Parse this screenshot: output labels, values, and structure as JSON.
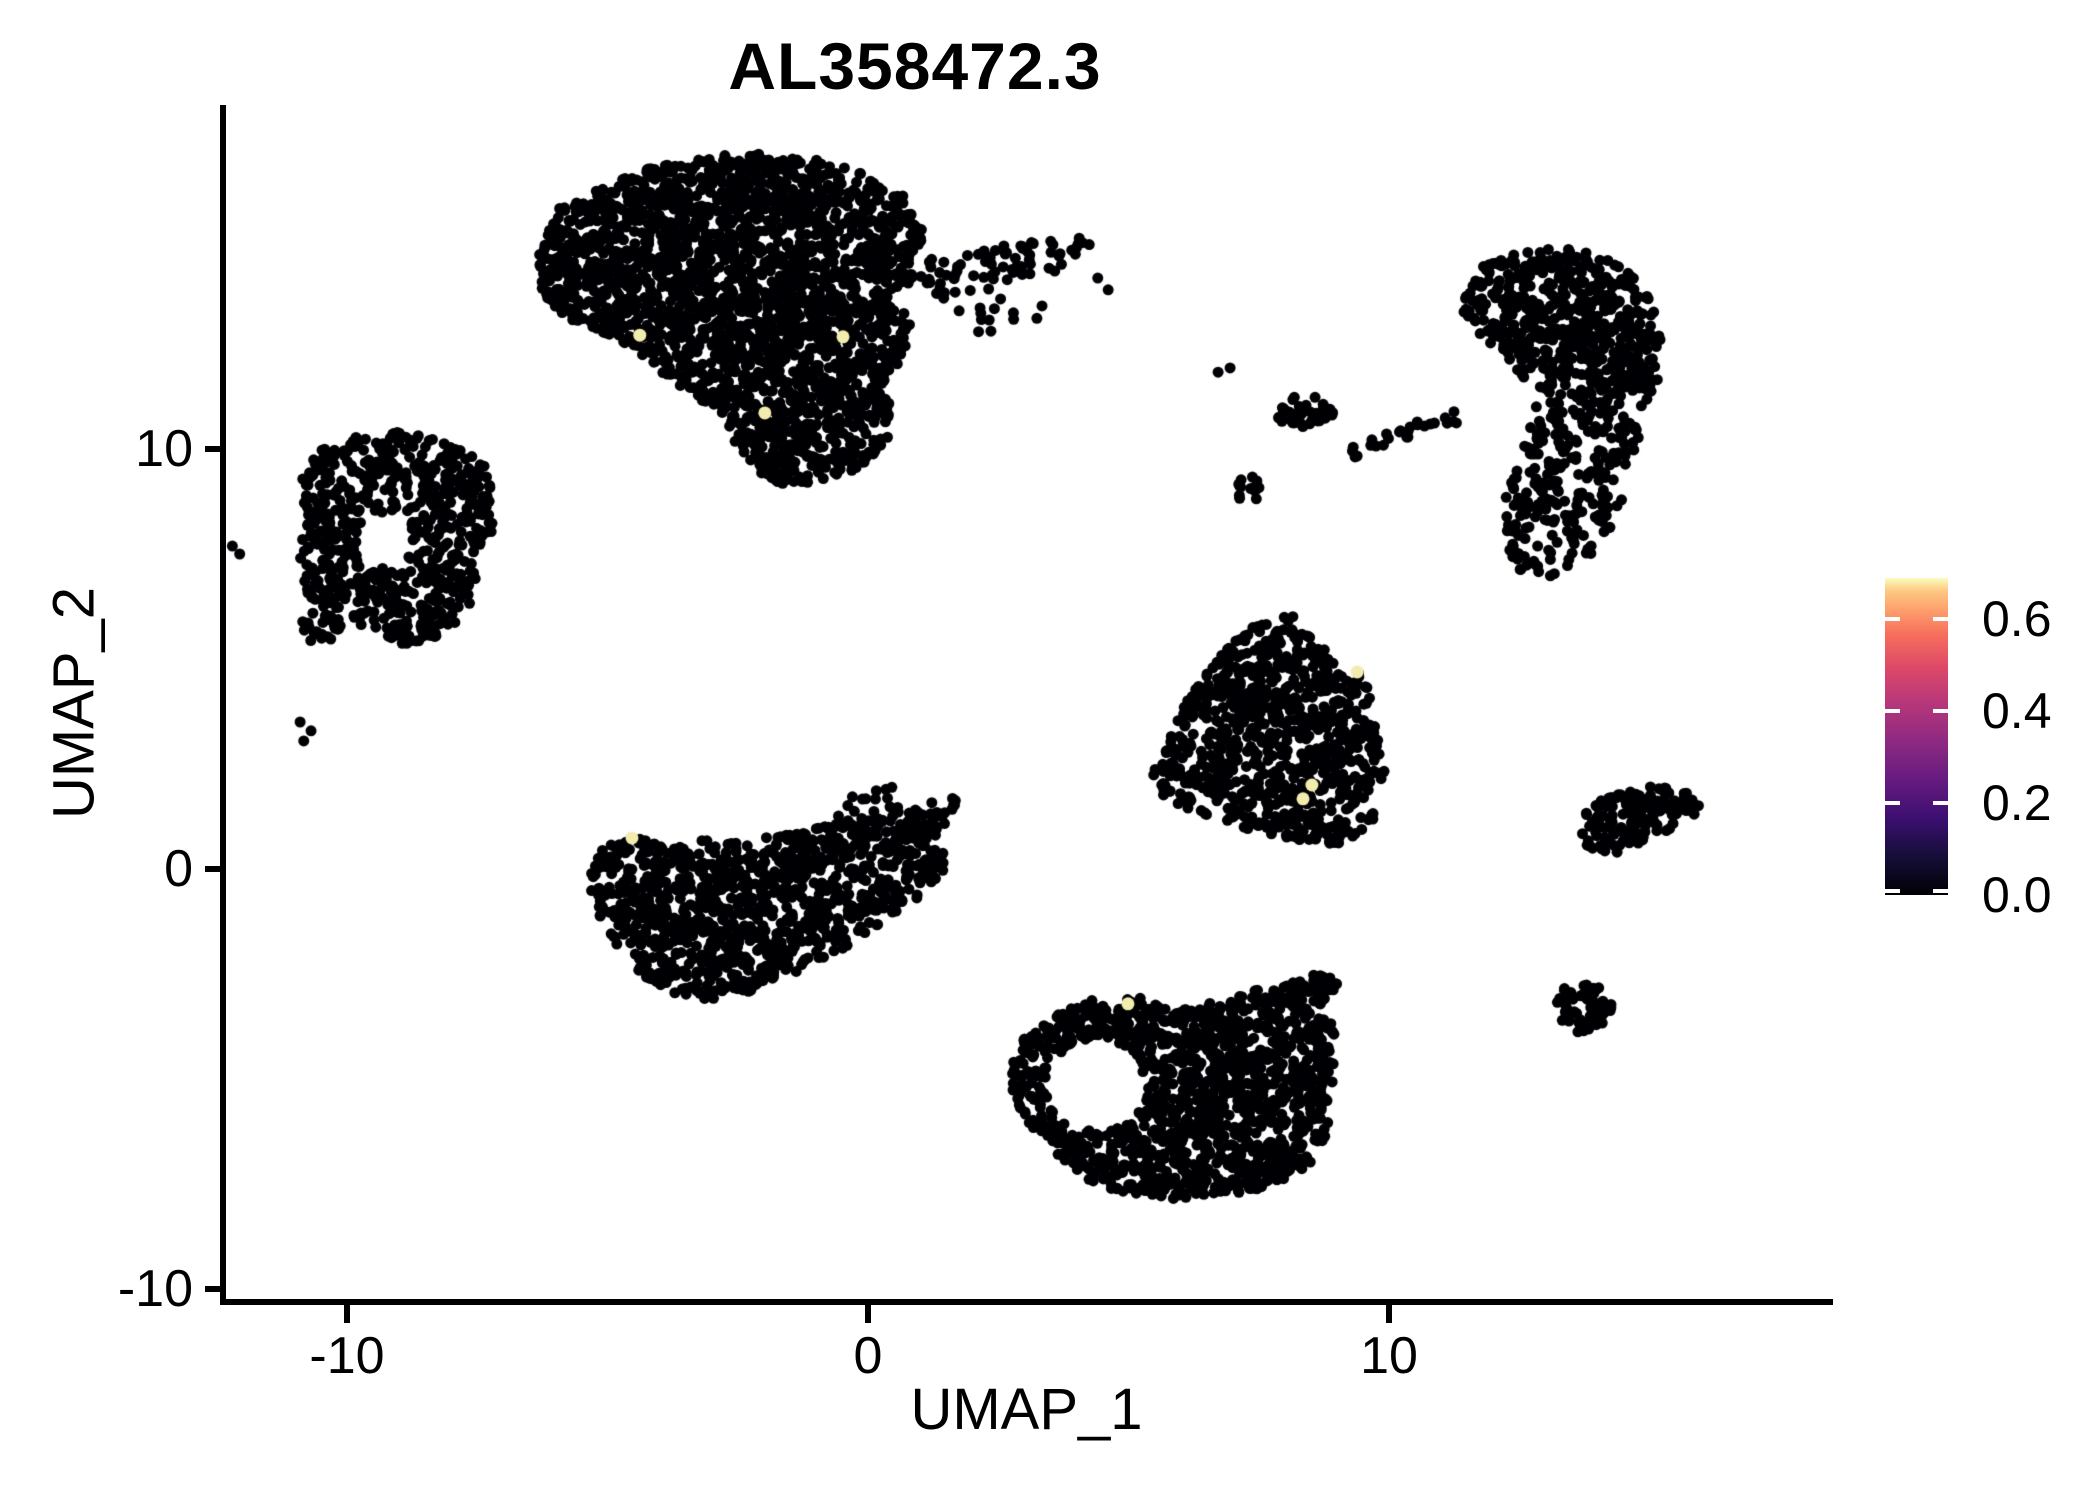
{
  "title": "AL358472.3",
  "axes": {
    "x": {
      "label": "UMAP_1",
      "tick_values": [
        -10,
        0,
        10
      ],
      "tick_labels": [
        "-10",
        "0",
        "10"
      ],
      "range": [
        -12.4,
        18.5
      ]
    },
    "y": {
      "label": "UMAP_2",
      "tick_values": [
        -10,
        0,
        10
      ],
      "tick_labels": [
        "-10",
        "0",
        "10"
      ],
      "range": [
        -10.3,
        18.2
      ]
    }
  },
  "legend": {
    "tick_values": [
      0.0,
      0.2,
      0.4,
      0.6
    ],
    "tick_labels": [
      "0.0",
      "0.2",
      "0.4",
      "0.6"
    ],
    "value_max": 0.688,
    "colormap": "magma",
    "gradient_stops": [
      {
        "t": 0.0,
        "color": "#000004"
      },
      {
        "t": 0.12,
        "color": "#150e38"
      },
      {
        "t": 0.24,
        "color": "#3b0f70"
      },
      {
        "t": 0.36,
        "color": "#651a80"
      },
      {
        "t": 0.48,
        "color": "#8c2981"
      },
      {
        "t": 0.6,
        "color": "#b5367a"
      },
      {
        "t": 0.72,
        "color": "#de4968"
      },
      {
        "t": 0.82,
        "color": "#f66e5c"
      },
      {
        "t": 0.9,
        "color": "#fe9f6d"
      },
      {
        "t": 0.96,
        "color": "#fdc982"
      },
      {
        "t": 1.0,
        "color": "#fbfdbf"
      }
    ]
  },
  "chart_data": {
    "type": "scatter",
    "title": "AL358472.3",
    "xlabel": "UMAP_1",
    "ylabel": "UMAP_2",
    "xlim": [
      -12.4,
      18.5
    ],
    "ylim": [
      -10.3,
      18.2
    ],
    "grid": false,
    "legend_position": "right",
    "point_color_zero": "#000004",
    "highlight_color": "#f2edae",
    "point_radius_px": 5.5,
    "clusters": [
      {
        "name": "top-center-large",
        "n": 2400,
        "polygon": [
          [
            -6.24,
            13.6
          ],
          [
            -6.33,
            14.6
          ],
          [
            -5.95,
            15.74
          ],
          [
            -4.95,
            16.4
          ],
          [
            -3.8,
            16.83
          ],
          [
            -2.5,
            17.07
          ],
          [
            -1.21,
            16.95
          ],
          [
            -0.06,
            16.57
          ],
          [
            0.75,
            15.98
          ],
          [
            1.07,
            15.12
          ],
          [
            0.92,
            14.17
          ],
          [
            0.52,
            13.55
          ],
          [
            0.81,
            13.02
          ],
          [
            0.69,
            12.17
          ],
          [
            0.23,
            11.5
          ],
          [
            0.48,
            10.93
          ],
          [
            0.35,
            10.12
          ],
          [
            -0.19,
            9.55
          ],
          [
            -0.92,
            9.21
          ],
          [
            -1.65,
            9.17
          ],
          [
            -2.26,
            9.55
          ],
          [
            -2.61,
            10.12
          ],
          [
            -2.73,
            10.74
          ],
          [
            -3.22,
            11.17
          ],
          [
            -3.84,
            11.71
          ],
          [
            -4.41,
            12.31
          ],
          [
            -5.05,
            12.76
          ],
          [
            -5.72,
            13.07
          ]
        ]
      },
      {
        "name": "top-center-arm",
        "n": 75,
        "polygon": [
          [
            1.0,
            14.45
          ],
          [
            1.77,
            14.69
          ],
          [
            2.53,
            14.83
          ],
          [
            3.3,
            14.98
          ],
          [
            3.97,
            15.17
          ],
          [
            4.3,
            14.88
          ],
          [
            4.07,
            14.45
          ],
          [
            3.45,
            14.17
          ],
          [
            2.73,
            13.93
          ],
          [
            1.96,
            13.64
          ],
          [
            1.29,
            13.55
          ],
          [
            0.9,
            13.88
          ]
        ]
      },
      {
        "name": "left-donut",
        "n": 680,
        "polygon": [
          [
            -10.79,
            8.31
          ],
          [
            -10.86,
            9.26
          ],
          [
            -10.56,
            9.93
          ],
          [
            -10.04,
            10.33
          ],
          [
            -9.37,
            10.21
          ],
          [
            -8.98,
            10.45
          ],
          [
            -8.41,
            10.29
          ],
          [
            -7.79,
            10.02
          ],
          [
            -7.26,
            9.5
          ],
          [
            -7.1,
            8.79
          ],
          [
            -7.22,
            8.02
          ],
          [
            -7.64,
            7.4
          ],
          [
            -7.49,
            6.76
          ],
          [
            -7.68,
            6.05
          ],
          [
            -8.21,
            5.5
          ],
          [
            -8.89,
            5.33
          ],
          [
            -9.52,
            5.55
          ],
          [
            -9.94,
            6.05
          ],
          [
            -10.29,
            5.45
          ],
          [
            -10.71,
            5.26
          ],
          [
            -10.94,
            5.93
          ],
          [
            -10.86,
            6.88
          ],
          [
            -10.98,
            7.6
          ]
        ],
        "holes": [
          {
            "cx": -9.31,
            "cy": 7.83,
            "rx": 0.52,
            "ry": 0.64
          }
        ]
      },
      {
        "name": "center-left-bottom",
        "n": 1100,
        "polygon": [
          [
            -5.37,
            -0.21
          ],
          [
            -5.11,
            0.5
          ],
          [
            -4.49,
            0.74
          ],
          [
            -3.84,
            0.55
          ],
          [
            -3.22,
            0.69
          ],
          [
            -2.46,
            0.64
          ],
          [
            -1.69,
            0.83
          ],
          [
            -0.92,
            1.02
          ],
          [
            -0.15,
            1.21
          ],
          [
            0.61,
            1.4
          ],
          [
            1.38,
            1.64
          ],
          [
            1.73,
            1.79
          ],
          [
            1.57,
            1.12
          ],
          [
            1.15,
            0.55
          ],
          [
            1.57,
            0.31
          ],
          [
            1.38,
            -0.26
          ],
          [
            0.84,
            -0.79
          ],
          [
            0.19,
            -1.36
          ],
          [
            -0.54,
            -1.93
          ],
          [
            -1.34,
            -2.45
          ],
          [
            -2.17,
            -2.88
          ],
          [
            -2.99,
            -3.12
          ],
          [
            -3.8,
            -2.93
          ],
          [
            -4.41,
            -2.45
          ],
          [
            -4.91,
            -1.79
          ],
          [
            -5.22,
            -1.02
          ]
        ]
      },
      {
        "name": "middle-triangle",
        "n": 850,
        "polygon": [
          [
            8.06,
            6.12
          ],
          [
            8.48,
            5.74
          ],
          [
            8.87,
            5.1
          ],
          [
            9.25,
            4.5
          ],
          [
            9.48,
            4.88
          ],
          [
            9.73,
            4.5
          ],
          [
            9.6,
            3.79
          ],
          [
            9.83,
            3.07
          ],
          [
            9.92,
            2.24
          ],
          [
            9.67,
            1.64
          ],
          [
            9.83,
            1.17
          ],
          [
            9.44,
            0.74
          ],
          [
            8.87,
            0.57
          ],
          [
            8.2,
            0.69
          ],
          [
            7.52,
            0.88
          ],
          [
            6.85,
            1.12
          ],
          [
            6.18,
            1.4
          ],
          [
            5.6,
            1.74
          ],
          [
            5.37,
            2.17
          ],
          [
            5.51,
            2.71
          ],
          [
            5.8,
            3.31
          ],
          [
            6.08,
            3.9
          ],
          [
            6.37,
            4.5
          ],
          [
            6.76,
            5.1
          ],
          [
            7.24,
            5.64
          ],
          [
            7.62,
            5.98
          ]
        ]
      },
      {
        "name": "bottom-center",
        "n": 1400,
        "polygon": [
          [
            2.69,
            -4.6
          ],
          [
            3.11,
            -3.83
          ],
          [
            3.69,
            -3.36
          ],
          [
            4.26,
            -3.12
          ],
          [
            4.8,
            -3.31
          ],
          [
            4.99,
            -3.02
          ],
          [
            5.41,
            -3.12
          ],
          [
            5.83,
            -3.4
          ],
          [
            6.37,
            -3.26
          ],
          [
            6.95,
            -3.02
          ],
          [
            7.56,
            -2.83
          ],
          [
            8.2,
            -2.64
          ],
          [
            8.68,
            -2.45
          ],
          [
            9.02,
            -2.64
          ],
          [
            8.87,
            -3.24
          ],
          [
            9.06,
            -3.6
          ],
          [
            8.91,
            -4.26
          ],
          [
            9.02,
            -4.9
          ],
          [
            8.79,
            -5.62
          ],
          [
            8.87,
            -6.33
          ],
          [
            8.52,
            -6.98
          ],
          [
            8.01,
            -7.4
          ],
          [
            7.33,
            -7.69
          ],
          [
            6.6,
            -7.83
          ],
          [
            5.89,
            -7.93
          ],
          [
            5.22,
            -7.83
          ],
          [
            4.55,
            -7.6
          ],
          [
            3.97,
            -7.21
          ],
          [
            3.49,
            -6.69
          ],
          [
            3.07,
            -6.07
          ],
          [
            2.8,
            -5.38
          ]
        ],
        "holes": [
          {
            "cx": 4.36,
            "cy": -5.14,
            "rx": 0.96,
            "ry": 1.07
          }
        ]
      },
      {
        "name": "right-crescent-top",
        "n": 560,
        "polygon": [
          [
            12.09,
            14.55
          ],
          [
            12.9,
            14.81
          ],
          [
            13.7,
            14.74
          ],
          [
            14.4,
            14.4
          ],
          [
            14.86,
            13.88
          ],
          [
            15.12,
            13.21
          ],
          [
            15.24,
            12.45
          ],
          [
            15.16,
            11.6
          ],
          [
            14.91,
            10.88
          ],
          [
            14.63,
            11.17
          ],
          [
            14.05,
            11.4
          ],
          [
            13.38,
            11.52
          ],
          [
            12.8,
            11.4
          ],
          [
            12.42,
            11.83
          ],
          [
            12.09,
            12.36
          ],
          [
            11.75,
            12.74
          ],
          [
            11.4,
            13.19
          ],
          [
            11.44,
            13.83
          ],
          [
            11.75,
            14.31
          ]
        ]
      },
      {
        "name": "right-crescent-bottom",
        "n": 270,
        "polygon": [
          [
            14.91,
            10.88
          ],
          [
            14.74,
            9.98
          ],
          [
            14.55,
            9.07
          ],
          [
            14.32,
            8.26
          ],
          [
            13.97,
            7.6
          ],
          [
            13.51,
            7.12
          ],
          [
            12.99,
            6.93
          ],
          [
            12.51,
            7.12
          ],
          [
            12.21,
            7.64
          ],
          [
            12.13,
            8.31
          ],
          [
            12.28,
            9.02
          ],
          [
            12.51,
            9.69
          ],
          [
            12.67,
            10.36
          ],
          [
            12.74,
            10.98
          ],
          [
            12.8,
            11.36
          ],
          [
            13.38,
            11.5
          ],
          [
            14.05,
            11.36
          ],
          [
            14.63,
            11.12
          ]
        ]
      },
      {
        "name": "right-arrow",
        "n": 140,
        "polygon": [
          [
            13.95,
            1.64
          ],
          [
            14.53,
            1.88
          ],
          [
            15.11,
            1.98
          ],
          [
            15.68,
            1.83
          ],
          [
            16.01,
            1.55
          ],
          [
            15.82,
            1.17
          ],
          [
            15.35,
            0.93
          ],
          [
            14.91,
            0.64
          ],
          [
            14.47,
            0.4
          ],
          [
            14.05,
            0.31
          ],
          [
            13.76,
            0.55
          ],
          [
            13.67,
            0.98
          ],
          [
            13.76,
            1.36
          ]
        ]
      },
      {
        "name": "right-small-blob",
        "n": 65,
        "polygon": [
          [
            13.21,
            -3.17
          ],
          [
            13.36,
            -2.83
          ],
          [
            13.7,
            -2.69
          ],
          [
            14.09,
            -2.79
          ],
          [
            14.28,
            -3.12
          ],
          [
            14.24,
            -3.55
          ],
          [
            13.97,
            -3.88
          ],
          [
            13.59,
            -3.93
          ],
          [
            13.28,
            -3.64
          ]
        ]
      },
      {
        "name": "small-blob-upper",
        "n": 40,
        "polygon": [
          [
            7.79,
            10.88
          ],
          [
            7.98,
            11.21
          ],
          [
            8.33,
            11.31
          ],
          [
            8.71,
            11.21
          ],
          [
            8.98,
            10.98
          ],
          [
            8.87,
            10.64
          ],
          [
            8.52,
            10.5
          ],
          [
            8.1,
            10.55
          ],
          [
            7.83,
            10.69
          ]
        ]
      },
      {
        "name": "small-blob-mid",
        "n": 13,
        "polygon": [
          [
            6.95,
            9.02
          ],
          [
            7.1,
            9.31
          ],
          [
            7.41,
            9.36
          ],
          [
            7.56,
            9.07
          ],
          [
            7.45,
            8.79
          ],
          [
            7.14,
            8.71
          ]
        ]
      }
    ],
    "sparse_groups": [
      {
        "name": "below-arm-scatter",
        "cx": 2.53,
        "cy": 13.31,
        "rx": 0.86,
        "ry": 0.6,
        "n": 13
      },
      {
        "name": "above-bottom-left-scatter",
        "cx": -0.35,
        "cy": 1.64,
        "rx": 1.15,
        "ry": 0.43,
        "n": 14
      }
    ],
    "streaks": [
      {
        "name": "thin-arc",
        "n": 26,
        "points": [
          [
            9.29,
            9.93
          ],
          [
            9.79,
            10.17
          ],
          [
            10.29,
            10.4
          ],
          [
            10.79,
            10.6
          ],
          [
            11.29,
            10.76
          ]
        ]
      }
    ],
    "isolated_points": [
      [
        -10.9,
        3.5
      ],
      [
        -10.69,
        3.29
      ],
      [
        -10.83,
        3.05
      ],
      [
        4.41,
        14.07
      ],
      [
        4.61,
        13.79
      ],
      [
        6.72,
        11.83
      ],
      [
        6.95,
        11.93
      ],
      [
        -12.2,
        7.69
      ],
      [
        -12.06,
        7.5
      ]
    ],
    "highlighted_points": [
      {
        "x": -4.38,
        "y": 12.71,
        "value": 0.65
      },
      {
        "x": -0.48,
        "y": 12.67,
        "value": 0.65
      },
      {
        "x": -1.98,
        "y": 10.86,
        "value": 0.65
      },
      {
        "x": -4.53,
        "y": 0.74,
        "value": 0.65
      },
      {
        "x": 4.99,
        "y": -3.21,
        "value": 0.65
      },
      {
        "x": 9.39,
        "y": 4.69,
        "value": 0.65
      },
      {
        "x": 8.52,
        "y": 2.0,
        "value": 0.65
      },
      {
        "x": 8.35,
        "y": 1.67,
        "value": 0.65
      }
    ]
  }
}
